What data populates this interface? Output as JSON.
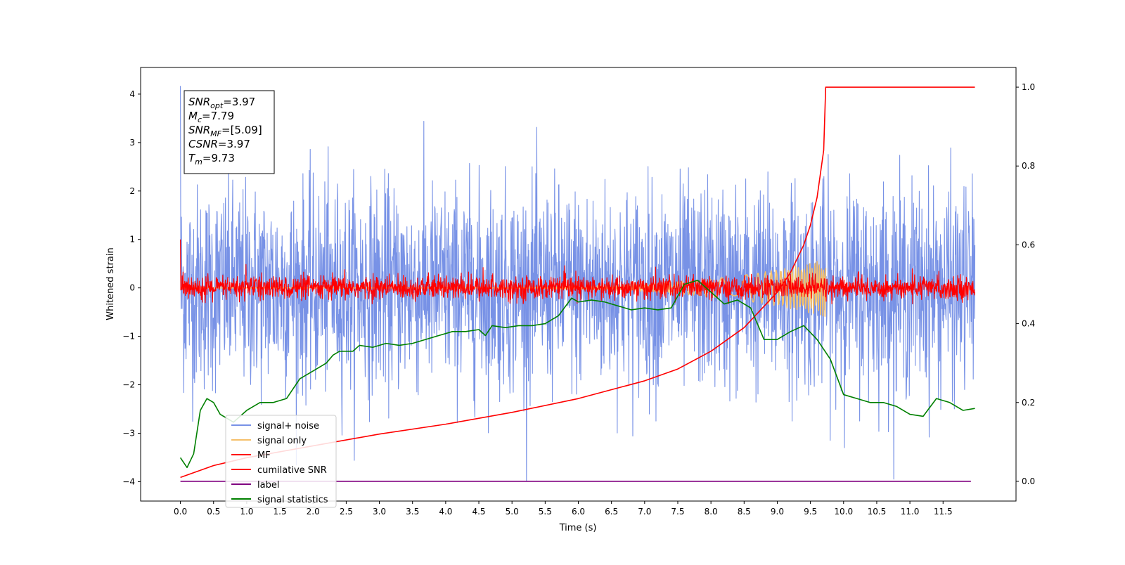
{
  "chart_data": {
    "type": "line",
    "xlabel": "Time (s)",
    "ylabel": "Whitened strain",
    "xlim": [
      -0.6,
      12.6
    ],
    "ylim": [
      -4.4,
      4.55
    ],
    "y2lim": [
      -0.05,
      1.05
    ],
    "x_ticks": [
      0.0,
      0.5,
      1.0,
      1.5,
      2.0,
      2.5,
      3.0,
      3.5,
      4.0,
      4.5,
      5.0,
      5.5,
      6.0,
      6.5,
      7.0,
      7.5,
      8.0,
      8.5,
      9.0,
      9.5,
      10.0,
      10.5,
      11.0,
      11.5
    ],
    "x_tick_labels": [
      "0.0",
      "0.5",
      "1.0",
      "1.5",
      "2.0",
      "2.5",
      "3.0",
      "3.5",
      "4.0",
      "4.5",
      "5.0",
      "5.5",
      "6.0",
      "6.5",
      "7.0",
      "7.5",
      "8.0",
      "8.5",
      "9.0",
      "9.5",
      "10.0",
      "10.5",
      "11.0",
      "11.5"
    ],
    "y_ticks": [
      -4,
      -3,
      -2,
      -1,
      0,
      1,
      2,
      3,
      4
    ],
    "y_tick_labels": [
      "−4",
      "−3",
      "−2",
      "−1",
      "0",
      "1",
      "2",
      "3",
      "4"
    ],
    "y2_ticks": [
      0.0,
      0.2,
      0.4,
      0.6,
      0.8,
      1.0
    ],
    "y2_tick_labels": [
      "0.0",
      "0.2",
      "0.4",
      "0.6",
      "0.8",
      "1.0"
    ],
    "grid": false,
    "legend_position": "lower-left",
    "info_box": {
      "lines": [
        {
          "sym": "SNR",
          "sub": "opt",
          "value": "=3.97"
        },
        {
          "sym": "M",
          "sub": "c",
          "value": "=7.79"
        },
        {
          "sym": "SNR",
          "sub": "MF",
          "value": "=[5.09]"
        },
        {
          "sym": "CSNR",
          "sub": "",
          "value": "=3.97"
        },
        {
          "sym": "T",
          "sub": "m",
          "value": "=9.73"
        }
      ]
    },
    "series": [
      {
        "name": "signal+ noise",
        "color": "#7892e6",
        "axis": "left",
        "kind": "noise",
        "x_range": [
          0.0,
          11.98
        ],
        "sigma": 1.05,
        "y_min": -3.98,
        "y_max": 4.17
      },
      {
        "name": "signal only",
        "color": "#f5c06b",
        "axis": "left",
        "kind": "chirp",
        "x_range": [
          0.0,
          9.73
        ],
        "amplitude_end": 0.6
      },
      {
        "name": "MF",
        "color": "#ff0000",
        "axis": "left",
        "kind": "noise",
        "x_range": [
          0.0,
          11.98
        ],
        "sigma": 0.16,
        "y_min": -0.33,
        "y_max": 1.0
      },
      {
        "name": "cumilative SNR",
        "color": "#ff0000",
        "axis": "right",
        "kind": "curve",
        "x": [
          0.0,
          0.5,
          1.0,
          2.0,
          3.0,
          4.0,
          5.0,
          6.0,
          7.0,
          7.5,
          8.0,
          8.5,
          9.0,
          9.2,
          9.4,
          9.5,
          9.6,
          9.7,
          9.73,
          10.0,
          11.0,
          11.98
        ],
        "values": [
          0.01,
          0.04,
          0.06,
          0.09,
          0.12,
          0.145,
          0.175,
          0.21,
          0.255,
          0.285,
          0.33,
          0.39,
          0.48,
          0.53,
          0.6,
          0.65,
          0.72,
          0.84,
          1.0,
          1.0,
          1.0,
          1.0
        ]
      },
      {
        "name": "label",
        "color": "#800080",
        "axis": "right",
        "kind": "curve",
        "x": [
          0.0,
          11.92
        ],
        "values": [
          0.0,
          0.0
        ]
      },
      {
        "name": "signal statistics",
        "color": "#008000",
        "axis": "right",
        "kind": "curve",
        "x": [
          0.0,
          0.1,
          0.2,
          0.3,
          0.4,
          0.5,
          0.6,
          0.7,
          0.8,
          1.0,
          1.2,
          1.4,
          1.6,
          1.8,
          2.0,
          2.2,
          2.3,
          2.4,
          2.6,
          2.7,
          2.9,
          3.1,
          3.3,
          3.5,
          3.7,
          3.9,
          4.1,
          4.3,
          4.5,
          4.6,
          4.7,
          4.9,
          5.1,
          5.3,
          5.5,
          5.7,
          5.9,
          6.0,
          6.2,
          6.4,
          6.6,
          6.8,
          7.0,
          7.2,
          7.4,
          7.6,
          7.8,
          8.0,
          8.2,
          8.4,
          8.6,
          8.8,
          9.0,
          9.2,
          9.4,
          9.6,
          9.8,
          10.0,
          10.2,
          10.4,
          10.6,
          10.8,
          11.0,
          11.2,
          11.4,
          11.6,
          11.8,
          11.98
        ],
        "values": [
          0.06,
          0.035,
          0.07,
          0.18,
          0.21,
          0.2,
          0.17,
          0.16,
          0.15,
          0.18,
          0.2,
          0.2,
          0.21,
          0.26,
          0.28,
          0.3,
          0.32,
          0.33,
          0.33,
          0.345,
          0.34,
          0.35,
          0.345,
          0.35,
          0.36,
          0.37,
          0.38,
          0.38,
          0.385,
          0.37,
          0.395,
          0.39,
          0.395,
          0.395,
          0.4,
          0.42,
          0.465,
          0.455,
          0.46,
          0.455,
          0.445,
          0.435,
          0.44,
          0.435,
          0.44,
          0.5,
          0.51,
          0.48,
          0.45,
          0.46,
          0.44,
          0.36,
          0.36,
          0.38,
          0.395,
          0.36,
          0.31,
          0.22,
          0.21,
          0.2,
          0.2,
          0.19,
          0.17,
          0.165,
          0.21,
          0.2,
          0.18,
          0.185
        ]
      }
    ]
  }
}
